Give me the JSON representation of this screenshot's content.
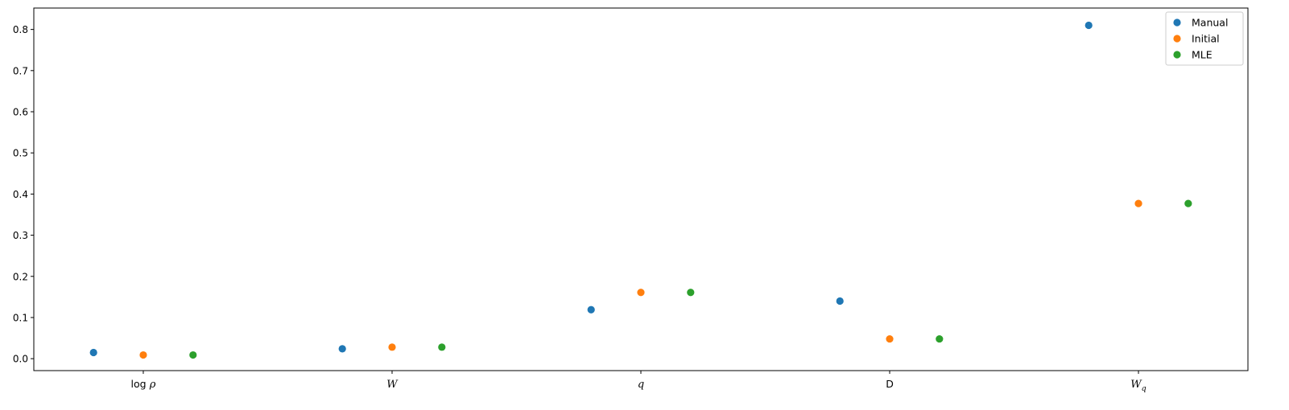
{
  "chart_data": {
    "type": "scatter",
    "categories": [
      {
        "key": "log_rho",
        "parts": [
          {
            "t": "log",
            "style": "plain"
          },
          {
            "t": " ρ",
            "style": "italic"
          }
        ]
      },
      {
        "key": "W",
        "parts": [
          {
            "t": "W",
            "style": "italic"
          }
        ]
      },
      {
        "key": "q",
        "parts": [
          {
            "t": "q",
            "style": "italic"
          }
        ]
      },
      {
        "key": "D",
        "parts": [
          {
            "t": "D",
            "style": "plain"
          }
        ]
      },
      {
        "key": "W_q",
        "parts": [
          {
            "t": "W",
            "style": "italic"
          },
          {
            "t": "q",
            "style": "italic-sub"
          }
        ]
      }
    ],
    "series": [
      {
        "name": "Manual",
        "color": "#1f77b4",
        "offset": -0.2,
        "values": [
          0.015,
          0.024,
          0.119,
          0.14,
          0.81
        ]
      },
      {
        "name": "Initial",
        "color": "#ff7f0e",
        "offset": 0.0,
        "values": [
          0.009,
          0.028,
          0.161,
          0.048,
          0.377
        ]
      },
      {
        "name": "MLE",
        "color": "#2ca02c",
        "offset": 0.2,
        "values": [
          0.009,
          0.028,
          0.161,
          0.048,
          0.377
        ]
      }
    ],
    "ylim": [
      -0.029,
      0.852
    ],
    "yticks": [
      0.0,
      0.1,
      0.2,
      0.3,
      0.4,
      0.5,
      0.6,
      0.7,
      0.8
    ],
    "ytick_labels": [
      "0.0",
      "0.1",
      "0.2",
      "0.3",
      "0.4",
      "0.5",
      "0.6",
      "0.7",
      "0.8"
    ],
    "title": "",
    "xlabel": "",
    "ylabel": "",
    "grid": false,
    "legend_position": "upper right"
  }
}
